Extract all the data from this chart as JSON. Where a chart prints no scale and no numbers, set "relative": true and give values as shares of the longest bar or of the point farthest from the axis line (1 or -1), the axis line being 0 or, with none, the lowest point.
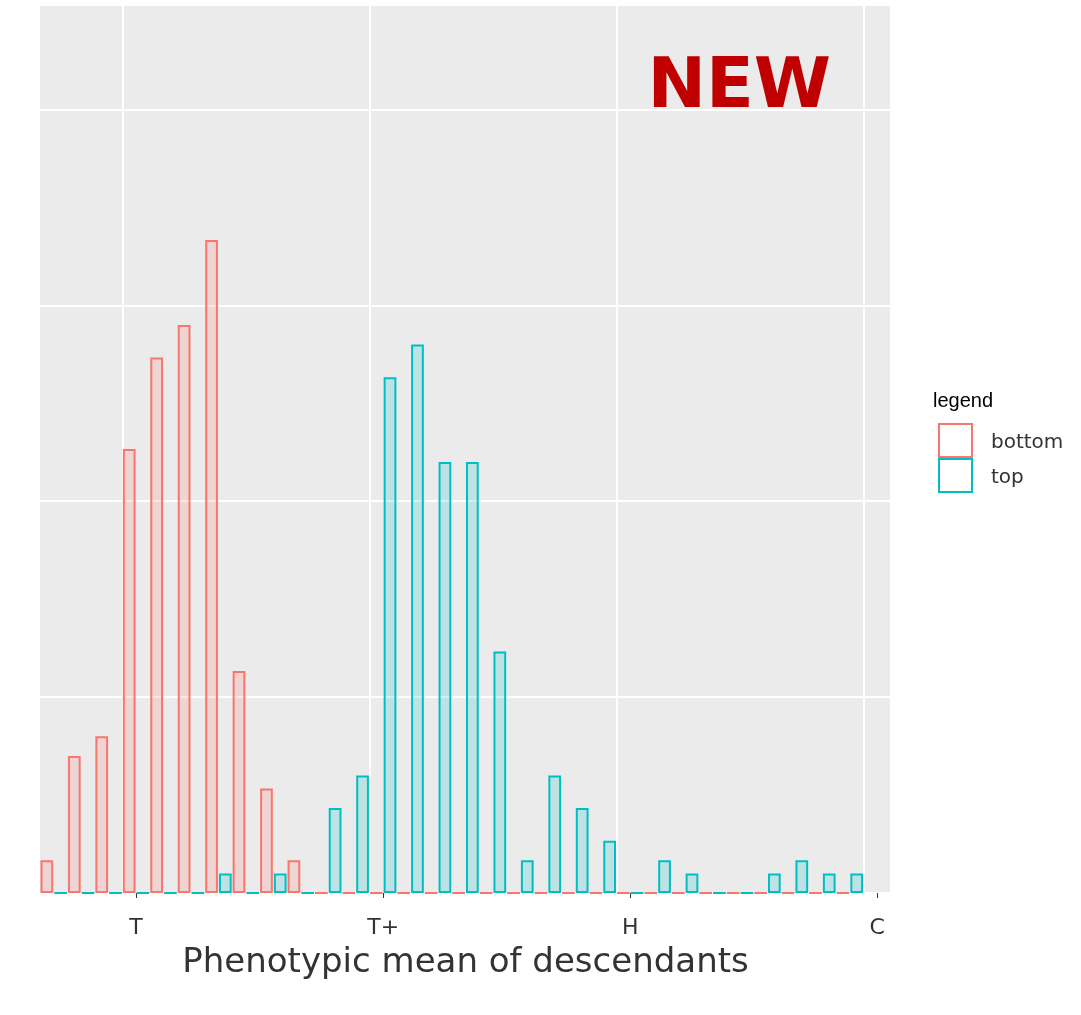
{
  "chart_data": {
    "type": "bar",
    "xlabel": "Phenotypic mean of descendants",
    "legend_title": "legend",
    "annotations": [
      "NEW"
    ],
    "relative": true,
    "categories": [
      null,
      null,
      null,
      "T",
      null,
      null,
      null,
      null,
      null,
      null,
      null,
      null,
      "T+",
      null,
      null,
      null,
      null,
      null,
      null,
      null,
      null,
      "H",
      null,
      null,
      null,
      null,
      null,
      null,
      null,
      null,
      "C"
    ],
    "series": [
      {
        "name": "bottom",
        "color": "#f8766d",
        "values": [
          0.05,
          0.21,
          0.24,
          0.68,
          0.82,
          0.87,
          1,
          0.34,
          0.16,
          0.05,
          0,
          0,
          0,
          0,
          0,
          0,
          0,
          0,
          0,
          0,
          0,
          0,
          0,
          0,
          0,
          0,
          0,
          0,
          0,
          0,
          null
        ]
      },
      {
        "name": "top",
        "color": "#00bfc4",
        "values": [
          0,
          0,
          0,
          0,
          0,
          0,
          0.03,
          0,
          0.03,
          0,
          0.13,
          0.18,
          0.79,
          0.84,
          0.66,
          0.66,
          0.37,
          0.05,
          0.18,
          0.13,
          0.08,
          0,
          0.05,
          0.03,
          0,
          0,
          0.03,
          0.05,
          0.03,
          0.03,
          null
        ]
      }
    ],
    "grid": true,
    "legend": "right"
  }
}
